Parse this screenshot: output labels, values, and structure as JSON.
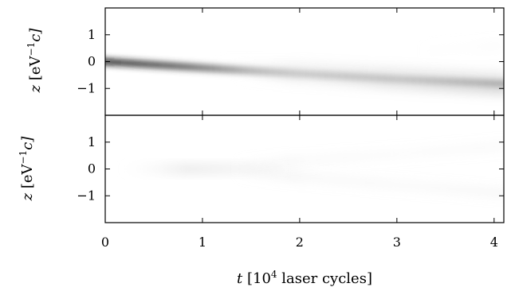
{
  "chart_data": [
    {
      "type": "heatmap",
      "panel": "top",
      "xlabel": "",
      "ylabel": "z [eV⁻¹c]",
      "ylabel_parts": [
        "z",
        " [eV",
        "−1",
        "c]"
      ],
      "xlim": [
        0,
        4.1
      ],
      "ylim": [
        -2,
        2
      ],
      "yticks": [
        1,
        0,
        -1
      ],
      "ytick_labels": [
        "1",
        "0",
        "−1"
      ],
      "xticks": [
        0,
        1,
        2,
        3,
        4
      ],
      "colormap": "white-to-black (greyscale, darker = higher density)",
      "features": [
        {
          "name": "main band",
          "x": [
            0,
            1,
            2,
            3,
            4.1
          ],
          "y": [
            0.0,
            -0.23,
            -0.45,
            -0.65,
            -0.82
          ],
          "intensity": [
            0.95,
            0.7,
            0.45,
            0.45,
            0.55
          ]
        },
        {
          "name": "upper branch",
          "x": [
            1.2,
            2,
            3,
            4.1
          ],
          "y": [
            -0.15,
            -0.25,
            -0.42,
            -0.6
          ],
          "intensity": [
            0.05,
            0.22,
            0.28,
            0.3
          ]
        },
        {
          "name": "lower branch",
          "x": [
            1.4,
            2,
            3,
            4.1
          ],
          "y": [
            -0.45,
            -0.6,
            -0.85,
            -1.05
          ],
          "intensity": [
            0.05,
            0.2,
            0.32,
            0.4
          ]
        },
        {
          "name": "faint upper wisp",
          "x": [
            3.3,
            4.1
          ],
          "y": [
            0.4,
            0.6
          ],
          "intensity": [
            0.05,
            0.08
          ]
        }
      ]
    },
    {
      "type": "heatmap",
      "panel": "bottom",
      "xlabel": "t [10⁴ laser cycles]",
      "xlabel_parts": [
        "t",
        " [10",
        "4",
        " laser cycles]"
      ],
      "ylabel": "z [eV⁻¹c]",
      "ylabel_parts": [
        "z",
        " [eV",
        "−1",
        "c]"
      ],
      "xlim": [
        0,
        4.1
      ],
      "ylim": [
        -2,
        2
      ],
      "yticks": [
        1,
        0,
        -1
      ],
      "ytick_labels": [
        "1",
        "0",
        "−1"
      ],
      "xticks": [
        0,
        1,
        2,
        3,
        4
      ],
      "xtick_labels": [
        "0",
        "1",
        "2",
        "3",
        "4"
      ],
      "colormap": "white-to-black (greyscale, darker = higher density)",
      "features": [
        {
          "name": "central blob",
          "x": [
            0.2,
            0.8,
            1.3,
            1.8
          ],
          "y": [
            0,
            0,
            0,
            0
          ],
          "intensity": [
            0.05,
            0.25,
            0.2,
            0.1
          ]
        },
        {
          "name": "upper branch",
          "x": [
            1.4,
            2,
            3,
            4.1
          ],
          "y": [
            0.1,
            0.3,
            0.55,
            0.85
          ],
          "intensity": [
            0.08,
            0.14,
            0.12,
            0.15
          ]
        },
        {
          "name": "lower branch",
          "x": [
            1.4,
            2,
            3,
            4.1
          ],
          "y": [
            -0.1,
            -0.3,
            -0.6,
            -0.9
          ],
          "intensity": [
            0.08,
            0.16,
            0.15,
            0.18
          ]
        }
      ]
    }
  ]
}
